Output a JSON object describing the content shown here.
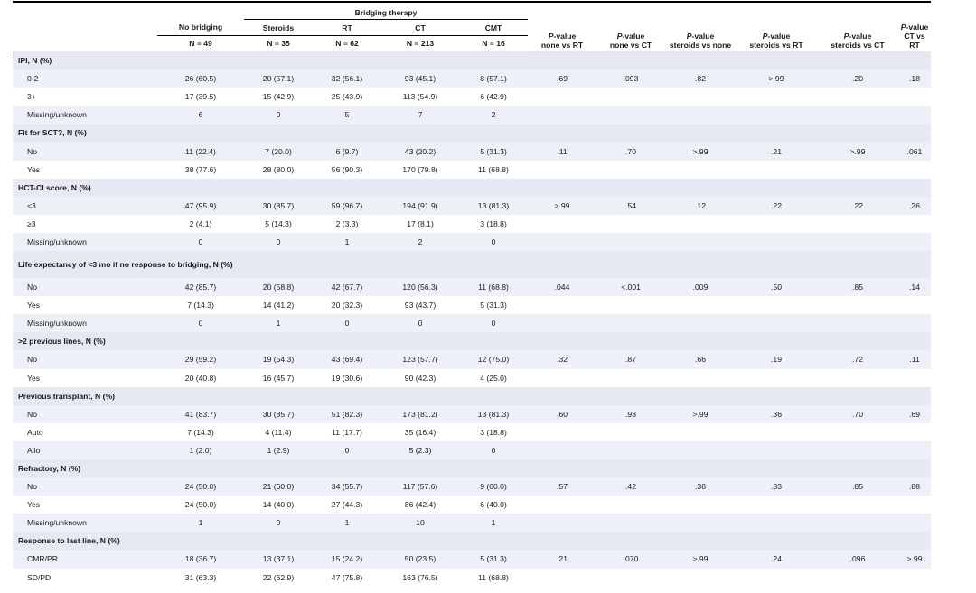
{
  "header": {
    "bridging_group": "Bridging therapy",
    "columns": [
      "No bridging",
      "Steroids",
      "RT",
      "CT",
      "CMT"
    ],
    "ns": [
      "N = 49",
      "N = 35",
      "N = 62",
      "N = 213",
      "N = 16"
    ],
    "pvalues": [
      {
        "p": "P",
        "rest": "-value",
        "sub": "none vs RT"
      },
      {
        "p": "P",
        "rest": "-value",
        "sub": "none vs CT"
      },
      {
        "p": "P",
        "rest": "-value",
        "sub": "steroids vs none"
      },
      {
        "p": "P",
        "rest": "-value",
        "sub": "steroids vs RT"
      },
      {
        "p": "P",
        "rest": "-value",
        "sub": "steroids vs CT"
      },
      {
        "p": "P",
        "rest": "-value",
        "sub": "CT vs RT"
      }
    ]
  },
  "sections": [
    {
      "title": "IPI, N (%)",
      "rows": [
        {
          "label": "0-2",
          "vals": [
            "26 (60.5)",
            "20 (57.1)",
            "32 (56.1)",
            "93 (45.1)",
            "8 (57.1)"
          ],
          "p": [
            ".69",
            ".093",
            ".82",
            ">.99",
            ".20",
            ".18"
          ]
        },
        {
          "label": "3+",
          "vals": [
            "17 (39.5)",
            "15 (42.9)",
            "25 (43.9)",
            "113 (54.9)",
            "6 (42.9)"
          ],
          "p": [
            "",
            "",
            "",
            "",
            "",
            ""
          ]
        },
        {
          "label": "Missing/unknown",
          "vals": [
            "6",
            "0",
            "5",
            "7",
            "2"
          ],
          "p": [
            "",
            "",
            "",
            "",
            "",
            ""
          ]
        }
      ]
    },
    {
      "title": "Fit for SCT?, N (%)",
      "rows": [
        {
          "label": "No",
          "vals": [
            "11 (22.4)",
            "7 (20.0)",
            "6 (9.7)",
            "43 (20.2)",
            "5 (31.3)"
          ],
          "p": [
            ".11",
            ".70",
            ">.99",
            ".21",
            ">.99",
            ".061"
          ]
        },
        {
          "label": "Yes",
          "vals": [
            "38 (77.6)",
            "28 (80.0)",
            "56 (90.3)",
            "170 (79.8)",
            "11 (68.8)"
          ],
          "p": [
            "",
            "",
            "",
            "",
            "",
            ""
          ]
        }
      ]
    },
    {
      "title": "HCT-CI score, N (%)",
      "rows": [
        {
          "label": "<3",
          "vals": [
            "47 (95.9)",
            "30 (85.7)",
            "59 (96.7)",
            "194 (91.9)",
            "13 (81.3)"
          ],
          "p": [
            ">.99",
            ".54",
            ".12",
            ".22",
            ".22",
            ".26"
          ]
        },
        {
          "label": "≥3",
          "vals": [
            "2 (4.1)",
            "5 (14.3)",
            "2 (3.3)",
            "17 (8.1)",
            "3 (18.8)"
          ],
          "p": [
            "",
            "",
            "",
            "",
            "",
            ""
          ]
        },
        {
          "label": "Missing/unknown",
          "vals": [
            "0",
            "0",
            "1",
            "2",
            "0"
          ],
          "p": [
            "",
            "",
            "",
            "",
            "",
            ""
          ]
        }
      ]
    },
    {
      "title": "Life expectancy of <3 mo if no response to bridging, N (%)",
      "tall": true,
      "rows": [
        {
          "label": "No",
          "vals": [
            "42 (85.7)",
            "20 (58.8)",
            "42 (67.7)",
            "120 (56.3)",
            "11 (68.8)"
          ],
          "p": [
            ".044",
            "<.001",
            ".009",
            ".50",
            ".85",
            ".14"
          ]
        },
        {
          "label": "Yes",
          "vals": [
            "7 (14.3)",
            "14 (41.2)",
            "20 (32.3)",
            "93 (43.7)",
            "5 (31.3)"
          ],
          "p": [
            "",
            "",
            "",
            "",
            "",
            ""
          ]
        },
        {
          "label": "Missing/unknown",
          "vals": [
            "0",
            "1",
            "0",
            "0",
            "0"
          ],
          "p": [
            "",
            "",
            "",
            "",
            "",
            ""
          ]
        }
      ]
    },
    {
      "title": ">2 previous lines, N (%)",
      "rows": [
        {
          "label": "No",
          "vals": [
            "29 (59.2)",
            "19 (54.3)",
            "43 (69.4)",
            "123 (57.7)",
            "12 (75.0)"
          ],
          "p": [
            ".32",
            ".87",
            ".66",
            ".19",
            ".72",
            ".11"
          ]
        },
        {
          "label": "Yes",
          "vals": [
            "20 (40.8)",
            "16 (45.7)",
            "19 (30.6)",
            "90 (42.3)",
            "4 (25.0)"
          ],
          "p": [
            "",
            "",
            "",
            "",
            "",
            ""
          ]
        }
      ]
    },
    {
      "title": "Previous transplant, N (%)",
      "rows": [
        {
          "label": "No",
          "vals": [
            "41 (83.7)",
            "30 (85.7)",
            "51 (82.3)",
            "173 (81.2)",
            "13 (81.3)"
          ],
          "p": [
            ".60",
            ".93",
            ">.99",
            ".36",
            ".70",
            ".69"
          ]
        },
        {
          "label": "Auto",
          "vals": [
            "7 (14.3)",
            "4 (11.4)",
            "11 (17.7)",
            "35 (16.4)",
            "3 (18.8)"
          ],
          "p": [
            "",
            "",
            "",
            "",
            "",
            ""
          ]
        },
        {
          "label": "Allo",
          "vals": [
            "1 (2.0)",
            "1 (2.9)",
            "0",
            "5 (2.3)",
            "0"
          ],
          "p": [
            "",
            "",
            "",
            "",
            "",
            ""
          ]
        }
      ]
    },
    {
      "title": "Refractory, N (%)",
      "rows": [
        {
          "label": "No",
          "vals": [
            "24 (50.0)",
            "21 (60.0)",
            "34 (55.7)",
            "117 (57.6)",
            "9 (60.0)"
          ],
          "p": [
            ".57",
            ".42",
            ".38",
            ".83",
            ".85",
            ".88"
          ]
        },
        {
          "label": "Yes",
          "vals": [
            "24 (50.0)",
            "14 (40.0)",
            "27 (44.3)",
            "86 (42.4)",
            "6 (40.0)"
          ],
          "p": [
            "",
            "",
            "",
            "",
            "",
            ""
          ]
        },
        {
          "label": "Missing/unknown",
          "vals": [
            "1",
            "0",
            "1",
            "10",
            "1"
          ],
          "p": [
            "",
            "",
            "",
            "",
            "",
            ""
          ]
        }
      ]
    },
    {
      "title": "Response to last line, N (%)",
      "rows": [
        {
          "label": "CMR/PR",
          "vals": [
            "18 (36.7)",
            "13 (37.1)",
            "15 (24.2)",
            "50 (23.5)",
            "5 (31.3)"
          ],
          "p": [
            ".21",
            ".070",
            ">.99",
            ".24",
            ".096",
            ">.99"
          ]
        },
        {
          "label": "SD/PD",
          "vals": [
            "31 (63.3)",
            "22 (62.9)",
            "47 (75.8)",
            "163 (76.5)",
            "11 (68.8)"
          ],
          "p": [
            "",
            "",
            "",
            "",
            "",
            ""
          ]
        }
      ]
    }
  ]
}
